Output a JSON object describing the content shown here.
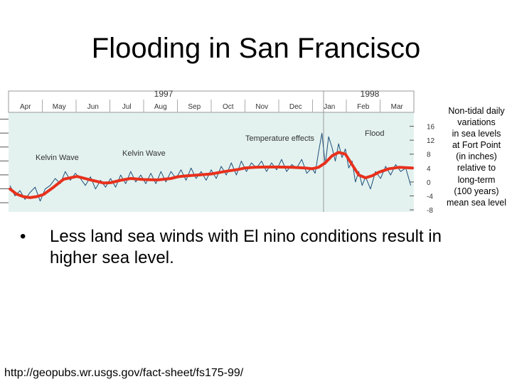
{
  "slide": {
    "title": "Flooding in San Francisco",
    "bullet": "Less land sea winds with El nino conditions result in higher sea level.",
    "source_url": "http://geopubs.wr.usgs.gov/fact-sheet/fs175-99/"
  },
  "chart_data": {
    "type": "line",
    "years": [
      "1997",
      "1998"
    ],
    "months": [
      "Apr",
      "May",
      "Jun",
      "Jul",
      "Aug",
      "Sep",
      "Oct",
      "Nov",
      "Dec",
      "Jan",
      "Feb",
      "Mar"
    ],
    "yticks": [
      16,
      12,
      8,
      4,
      0,
      -4,
      -8
    ],
    "ylim": [
      -8.6,
      20
    ],
    "annotations": [
      "Kelvin Wave",
      "Kelvin Wave",
      "Temperature effects",
      "Flood"
    ],
    "side_label": [
      "Non-tidal daily",
      "variations",
      "in sea levels",
      "at Fort Point",
      "(in inches)",
      "relative to",
      "long-term",
      "(100 years)",
      "mean sea level"
    ],
    "colors": {
      "plot_bg": "#e3f2ef",
      "daily": "#1f4e79",
      "smoothed": "#e8301c"
    },
    "series": [
      {
        "x": [
          0,
          0.2,
          0.4,
          0.6,
          0.8,
          1,
          1.3,
          1.6,
          2,
          2.4,
          2.8,
          3,
          3.3,
          3.6,
          4,
          4.4,
          4.8,
          5,
          5.3,
          5.6,
          6,
          6.4,
          6.8,
          7,
          7.3,
          7.6,
          8,
          8.4,
          8.8,
          9,
          9.2,
          9.4,
          9.6,
          9.8,
          10,
          10.2,
          10.4,
          10.6,
          10.8,
          11,
          11.3,
          11.6,
          12
        ],
        "values": [
          -2,
          -3.5,
          -4.2,
          -4.5,
          -4.2,
          -3.6,
          -1.5,
          0.8,
          1.6,
          0.6,
          -0.3,
          -0.2,
          0.5,
          1,
          0.7,
          0.6,
          1,
          1.5,
          1.8,
          2,
          2.3,
          3,
          3.6,
          4,
          4.2,
          4.3,
          4.3,
          4.2,
          4,
          3.8,
          4.2,
          5.5,
          7.5,
          8.5,
          8,
          5,
          2,
          1.2,
          1.8,
          2.8,
          3.8,
          4.2,
          4
        ]
      },
      {
        "x": [
          0,
          0.15,
          0.3,
          0.45,
          0.6,
          0.75,
          0.9,
          1.05,
          1.2,
          1.35,
          1.5,
          1.65,
          1.8,
          1.95,
          2.1,
          2.25,
          2.4,
          2.55,
          2.7,
          2.85,
          3,
          3.15,
          3.3,
          3.45,
          3.6,
          3.75,
          3.9,
          4.05,
          4.2,
          4.35,
          4.5,
          4.65,
          4.8,
          4.95,
          5.1,
          5.25,
          5.4,
          5.55,
          5.7,
          5.85,
          6,
          6.15,
          6.3,
          6.45,
          6.6,
          6.75,
          6.9,
          7.05,
          7.2,
          7.35,
          7.5,
          7.65,
          7.8,
          7.95,
          8.1,
          8.25,
          8.4,
          8.55,
          8.7,
          8.85,
          9,
          9.1,
          9.2,
          9.3,
          9.4,
          9.5,
          9.6,
          9.7,
          9.8,
          9.9,
          10,
          10.1,
          10.2,
          10.3,
          10.4,
          10.5,
          10.6,
          10.75,
          10.9,
          11.05,
          11.2,
          11.35,
          11.5,
          11.65,
          11.8,
          11.95
        ],
        "values": [
          -1,
          -4,
          -2.5,
          -5,
          -3,
          -1.5,
          -5.5,
          -2,
          -1,
          1,
          -0.5,
          3,
          0.5,
          2.5,
          1,
          -1,
          1.5,
          -2,
          0.5,
          -1.5,
          1,
          -1.5,
          2,
          -0.5,
          3,
          0,
          2,
          -0.5,
          2.5,
          -0.5,
          3,
          0,
          3,
          1,
          3.5,
          0.5,
          4,
          1,
          3,
          0.5,
          3.5,
          1,
          4.5,
          2,
          5.5,
          2,
          6,
          3,
          5.5,
          4,
          6,
          3,
          5.5,
          3.5,
          6.5,
          3,
          5,
          4,
          6.5,
          2.5,
          4,
          2.5,
          8.5,
          14,
          5,
          13,
          10,
          6,
          11,
          7,
          9.5,
          4,
          6,
          0,
          3,
          -1,
          1.5,
          -2,
          3,
          1,
          4.5,
          2,
          5,
          3,
          4,
          -1
        ]
      }
    ]
  }
}
